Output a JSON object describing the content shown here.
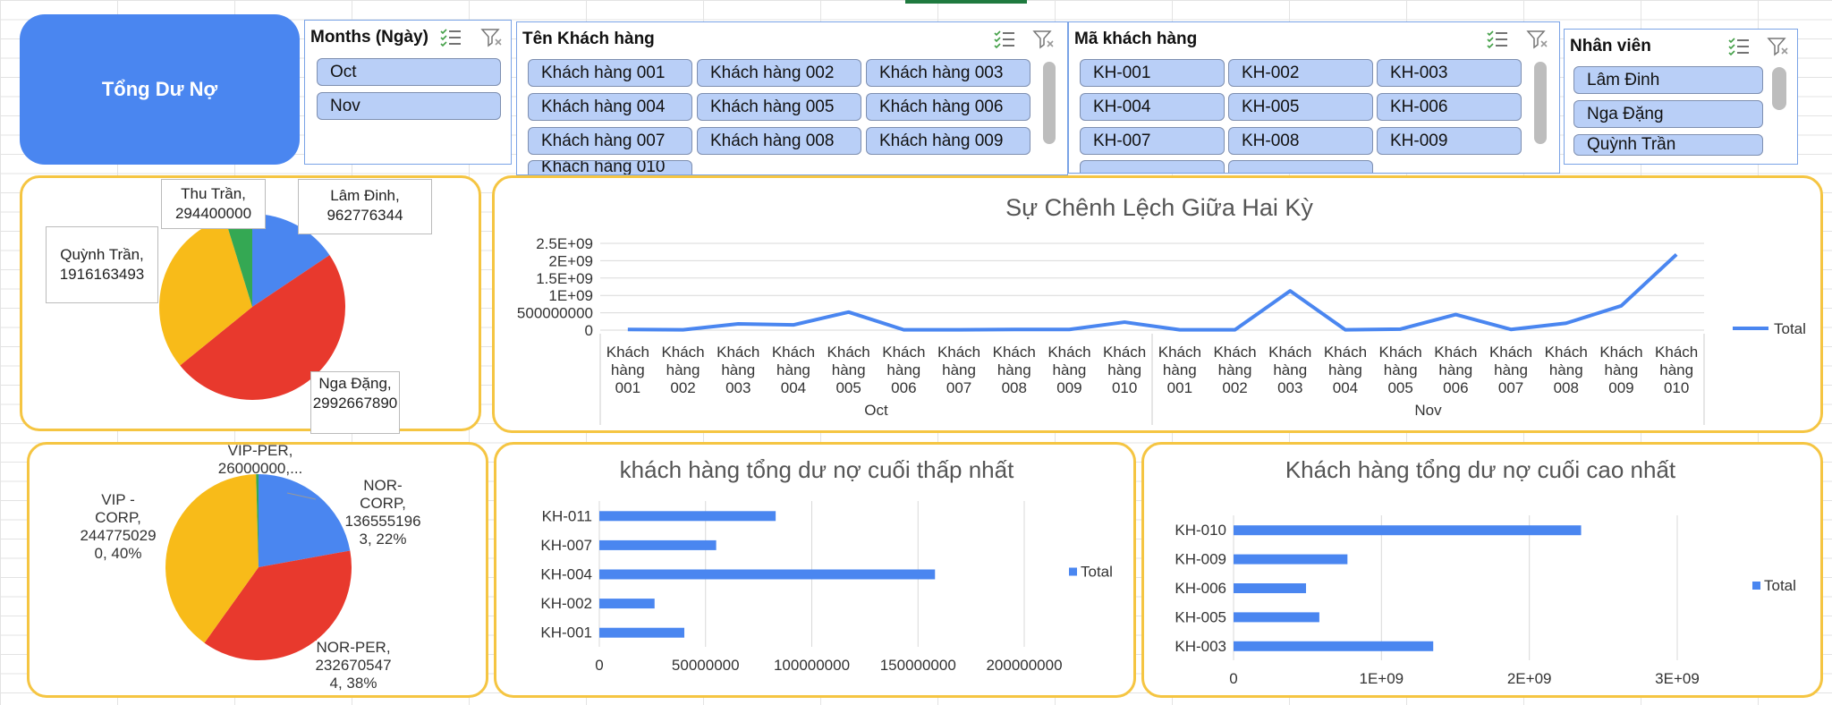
{
  "title_button": {
    "label": "Tổng Dư Nợ"
  },
  "slicers": {
    "months": {
      "title": "Months (Ngày)",
      "items": [
        "Oct",
        "Nov"
      ]
    },
    "customer_name": {
      "title": "Tên Khách hàng",
      "items": [
        "Khách hàng 001",
        "Khách hàng 002",
        "Khách hàng 003",
        "Khách hàng 004",
        "Khách hàng 005",
        "Khách hàng 006",
        "Khách hàng 007",
        "Khách hàng 008",
        "Khách hàng 009"
      ],
      "partial": "Khách hàng 010"
    },
    "customer_code": {
      "title": "Mã khách hàng",
      "items": [
        "KH-001",
        "KH-002",
        "KH-003",
        "KH-004",
        "KH-005",
        "KH-006",
        "KH-007",
        "KH-008",
        "KH-009"
      ]
    },
    "staff": {
      "title": "Nhân viên",
      "items": [
        "Lâm Đinh",
        "Nga Đặng",
        "Quỳnh Trần"
      ]
    }
  },
  "icons": {
    "multiselect": "multiselect-icon",
    "clear_filter": "clear-filter-icon"
  },
  "colors": {
    "blue": "#4a86f0",
    "red": "#e8392d",
    "yellow": "#f8bb19",
    "green": "#34a853",
    "panel_border": "#f5c542"
  },
  "chart_data": [
    {
      "type": "pie",
      "title": "",
      "slices": [
        {
          "label": "Lâm Đinh, 962776344",
          "value": 962776344,
          "color": "#4a86f0"
        },
        {
          "label": "Nga Đặng, 2992667890",
          "value": 2992667890,
          "color": "#e8392d"
        },
        {
          "label": "Quỳnh Trần, 1916163493",
          "value": 1916163493,
          "color": "#f8bb19"
        },
        {
          "label": "Thu Trần, 294400000",
          "value": 294400000,
          "color": "#34a853"
        }
      ]
    },
    {
      "type": "line",
      "title": "Sự Chênh Lệch Giữa Hai Kỳ",
      "categories": [
        "Khách hàng 001",
        "Khách hàng 002",
        "Khách hàng 003",
        "Khách hàng 004",
        "Khách hàng 005",
        "Khách hàng 006",
        "Khách hàng 007",
        "Khách hàng 008",
        "Khách hàng 009",
        "Khách hàng 010",
        "Khách hàng 001",
        "Khách hàng 002",
        "Khách hàng 003",
        "Khách hàng 004",
        "Khách hàng 005",
        "Khách hàng 006",
        "Khách hàng 007",
        "Khách hàng 008",
        "Khách hàng 009",
        "Khách hàng 010"
      ],
      "groups": [
        {
          "label": "Oct",
          "count": 10
        },
        {
          "label": "Nov",
          "count": 10
        }
      ],
      "series": [
        {
          "name": "Total",
          "values": [
            20000000,
            10000000,
            180000000,
            150000000,
            520000000,
            10000000,
            10000000,
            20000000,
            20000000,
            230000000,
            10000000,
            10000000,
            1130000000,
            10000000,
            30000000,
            450000000,
            20000000,
            200000000,
            700000000,
            2180000000
          ]
        }
      ],
      "yticks": [
        "0",
        "500000000",
        "1E+09",
        "1.5E+09",
        "2E+09",
        "2.5E+09"
      ],
      "ylim": [
        0,
        2500000000
      ],
      "legend": "right"
    },
    {
      "type": "pie",
      "title": "",
      "slices": [
        {
          "label": "NOR-CORP, 1365551963, 22%",
          "value": 1365551963,
          "color": "#4a86f0"
        },
        {
          "label": "NOR-PER, 2326705474, 38%",
          "value": 2326705474,
          "color": "#e8392d"
        },
        {
          "label": "VIP - CORP, 2447750290, 40%",
          "value": 2447750290,
          "color": "#f8bb19"
        },
        {
          "label": "VIP-PER, 26000000,...",
          "value": 26000000,
          "color": "#34a853"
        }
      ]
    },
    {
      "type": "bar",
      "orientation": "horizontal",
      "title": "khách hàng tổng dư nợ cuối thấp nhất",
      "categories": [
        "KH-011",
        "KH-007",
        "KH-004",
        "KH-002",
        "KH-001"
      ],
      "series": [
        {
          "name": "Total",
          "values": [
            83000000,
            55000000,
            158000000,
            26000000,
            40000000
          ]
        }
      ],
      "xticks": [
        "0",
        "50000000",
        "100000000",
        "150000000",
        "200000000"
      ],
      "xlim": [
        0,
        200000000
      ],
      "legend": "right"
    },
    {
      "type": "bar",
      "orientation": "horizontal",
      "title": "Khách hàng tổng dư nợ cuối cao nhất",
      "categories": [
        "KH-010",
        "KH-009",
        "KH-006",
        "KH-005",
        "KH-003"
      ],
      "series": [
        {
          "name": "Total",
          "values": [
            2350000000,
            770000000,
            490000000,
            580000000,
            1350000000
          ]
        }
      ],
      "xticks": [
        "0",
        "1E+09",
        "2E+09",
        "3E+09"
      ],
      "xlim": [
        0,
        3000000000
      ],
      "legend": "right"
    }
  ]
}
